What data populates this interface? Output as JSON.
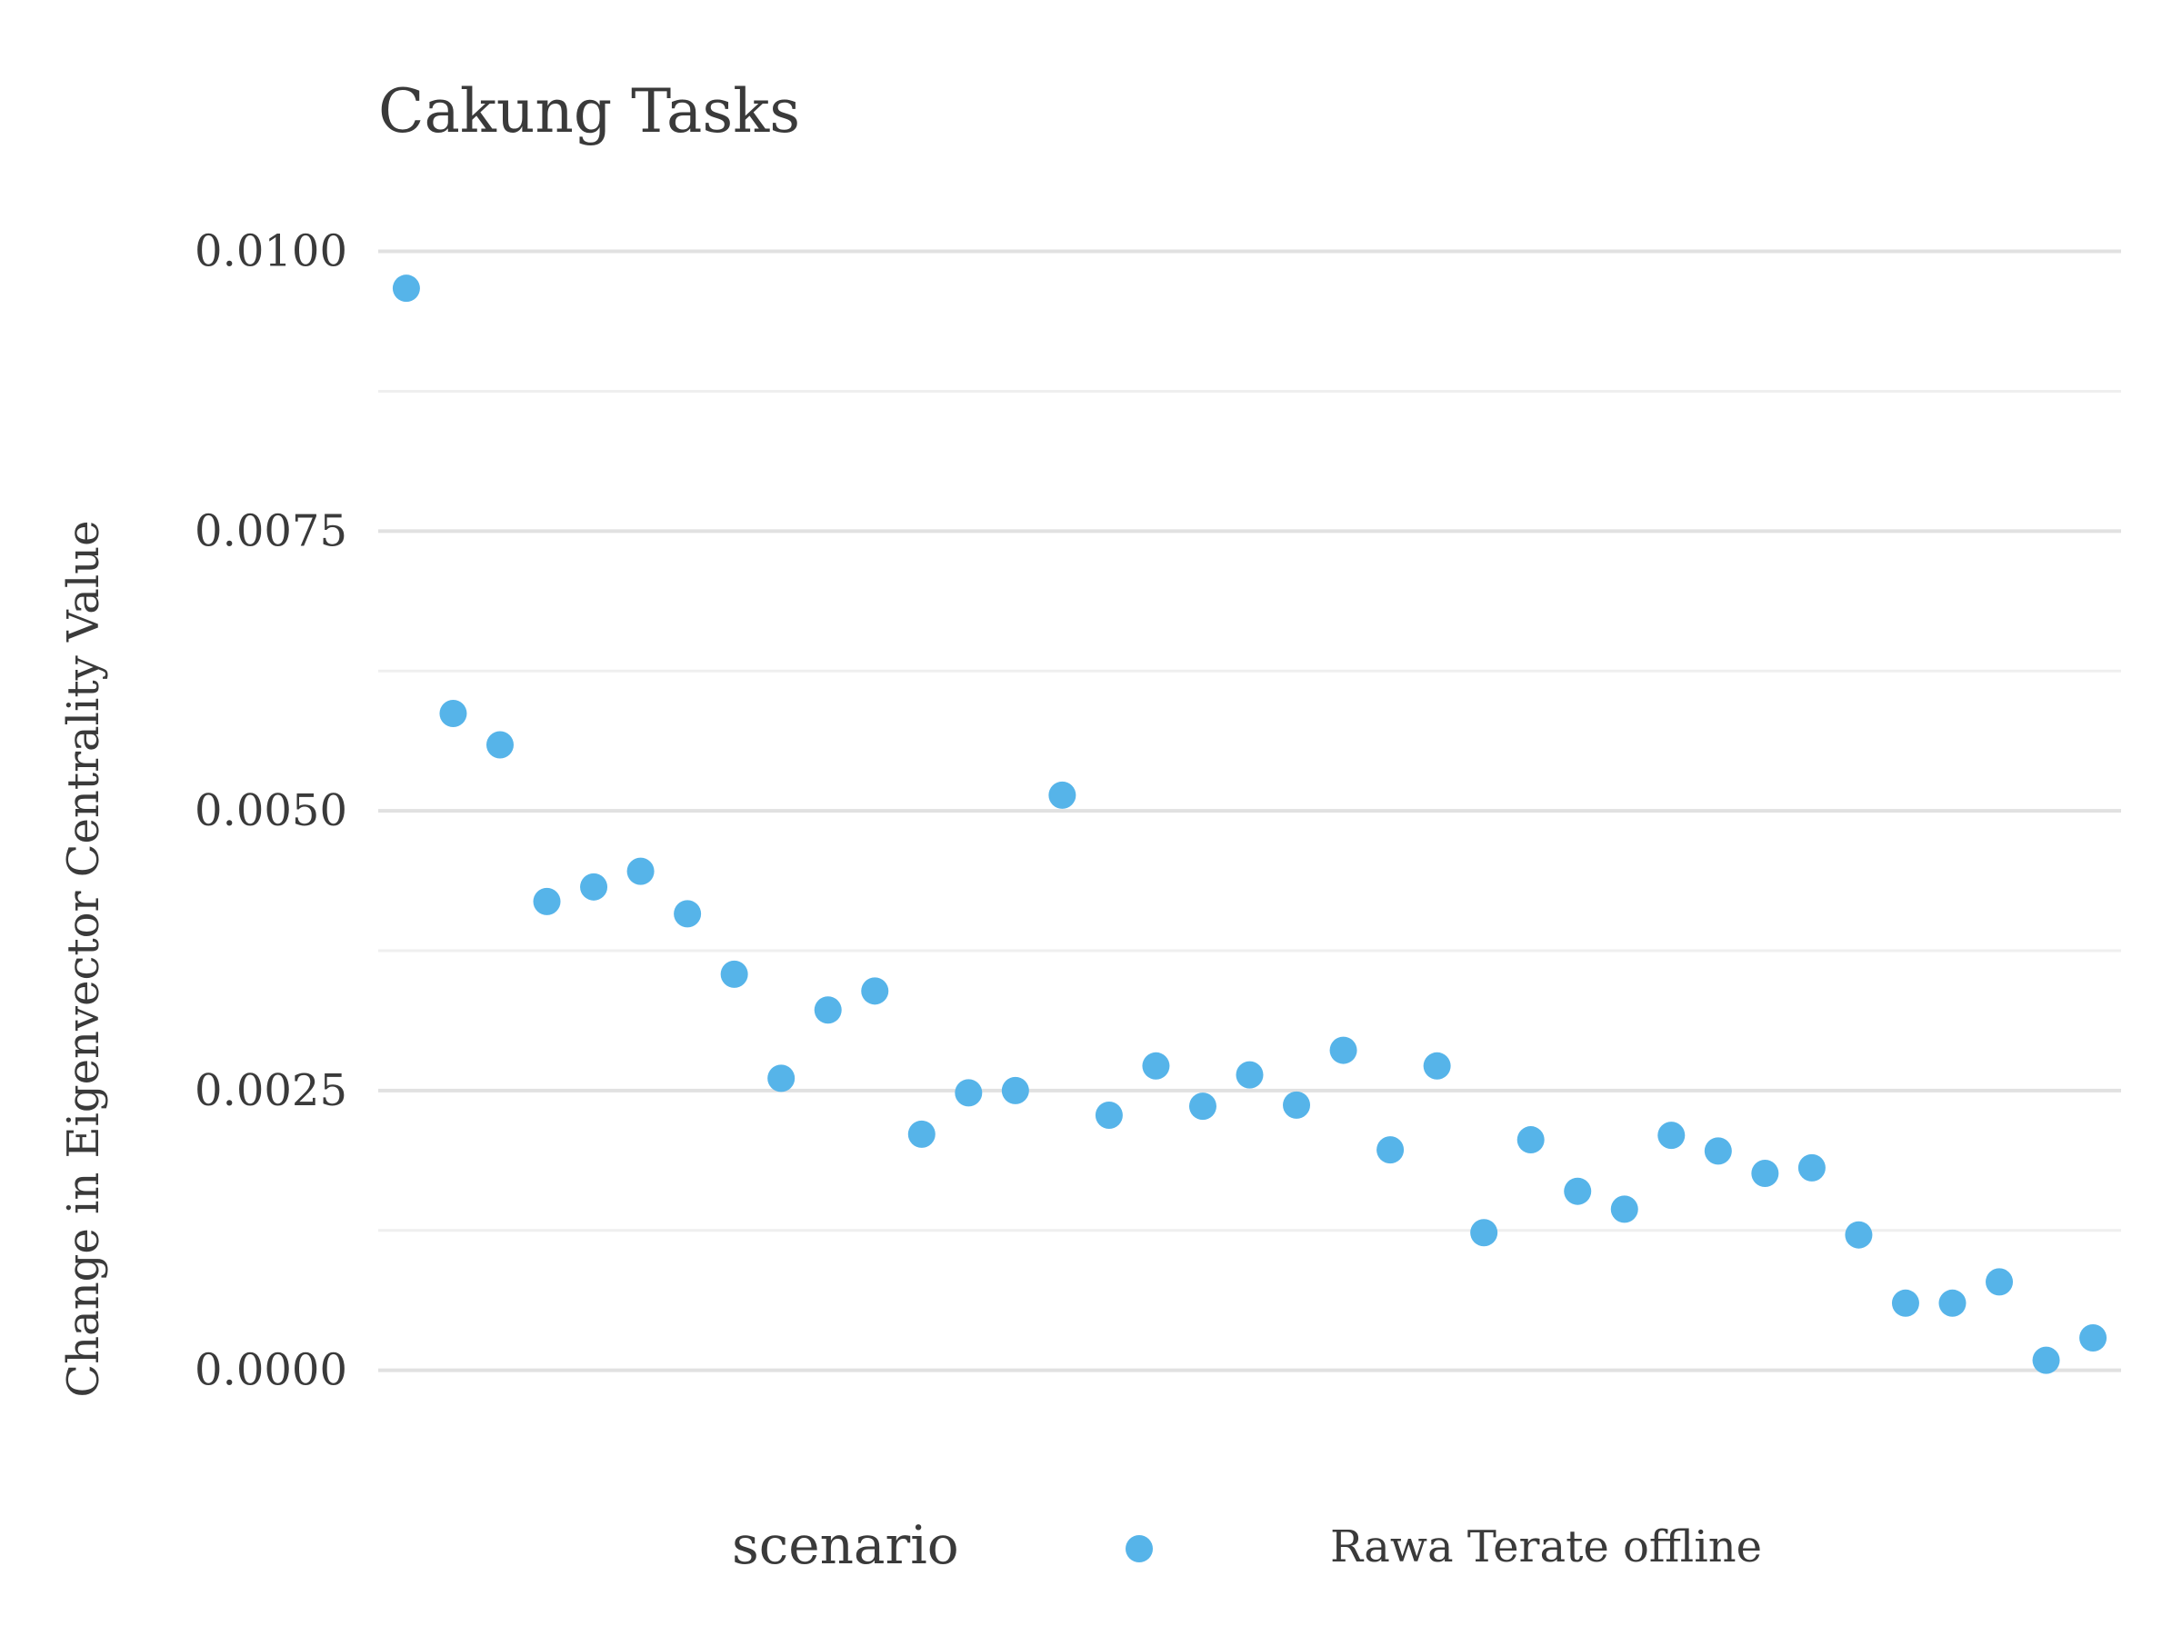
{
  "chart_data": {
    "type": "scatter",
    "title": "Cakung Tasks",
    "xlabel": "",
    "ylabel": "Change in Eigenvector Centrality Value",
    "ylim": [
      -0.00075,
      0.0105
    ],
    "yticks": [
      0.0,
      0.0025,
      0.005,
      0.0075,
      0.01
    ],
    "ytick_labels": [
      "0.0000",
      "0.0025",
      "0.0050",
      "0.0075",
      "0.0100"
    ],
    "grid": true,
    "legend": {
      "title": "scenario",
      "placement": "bottom",
      "entries": [
        {
          "label": "Rawa Terate offline",
          "color": "#56B4E9"
        }
      ]
    },
    "series": [
      {
        "name": "Rawa Terate offline",
        "color": "#56B4E9",
        "x": [
          1,
          2,
          3,
          4,
          5,
          6,
          7,
          8,
          9,
          10,
          11,
          12,
          13,
          14,
          15,
          16,
          17,
          18,
          19,
          20,
          21,
          22,
          23,
          24,
          25,
          26,
          27,
          28,
          29,
          30,
          31,
          32,
          33,
          34,
          35,
          36,
          37
        ],
        "y": [
          0.00967,
          0.00587,
          0.00559,
          0.00419,
          0.00432,
          0.00446,
          0.00408,
          0.00354,
          0.00261,
          0.00322,
          0.00339,
          0.00211,
          0.00248,
          0.0025,
          0.00514,
          0.00228,
          0.00272,
          0.00236,
          0.00264,
          0.00237,
          0.00286,
          0.00197,
          0.00272,
          0.00123,
          0.00206,
          0.0016,
          0.00144,
          0.0021,
          0.00196,
          0.00176,
          0.00181,
          0.00121,
          0.0006,
          0.0006,
          0.00079,
          9e-05,
          0.00029
        ]
      }
    ]
  }
}
